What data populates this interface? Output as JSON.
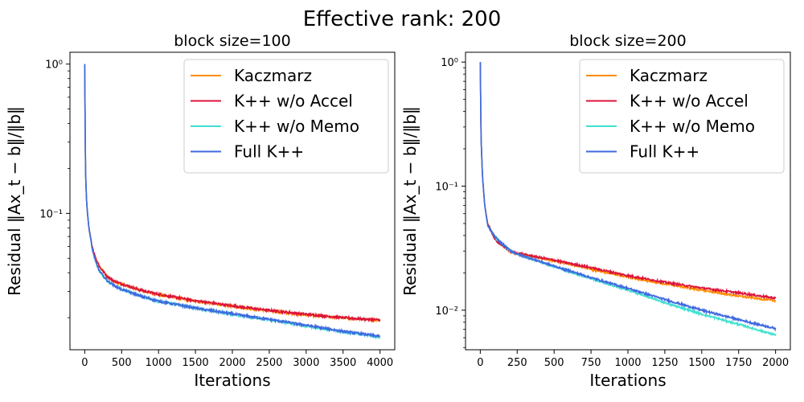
{
  "title": "Effective rank: 200",
  "colors": {
    "Kaczmarz": "#ff8c00",
    "K++ w/o Accel": "#dc143c",
    "K++ w/o Memo": "#40e0d0",
    "Full K++": "#4169e1"
  },
  "chart_data": [
    {
      "type": "line",
      "title": "block size=100",
      "xlabel": "Iterations",
      "ylabel": "Residual ‖Ax_t − b‖/‖b‖",
      "yscale": "log",
      "xlim": [
        -200,
        4200
      ],
      "ylim": [
        0.0122,
        1.2
      ],
      "xticks": [
        0,
        500,
        1000,
        1500,
        2000,
        2500,
        3000,
        3500,
        4000
      ],
      "xtick_labels": [
        "0",
        "500",
        "1000",
        "1500",
        "2000",
        "2500",
        "3000",
        "3500",
        "4000"
      ],
      "yticks": [
        1.0,
        0.1
      ],
      "ytick_labels": [
        "10⁰",
        "10⁻¹"
      ],
      "legend_position": "top-right",
      "grid": false,
      "series": [
        {
          "name": "Kaczmarz",
          "x": [
            0,
            10,
            25,
            50,
            100,
            150,
            200,
            300,
            400,
            500,
            750,
            1000,
            1500,
            2000,
            2500,
            3000,
            3500,
            4000
          ],
          "y": [
            1.0,
            0.2,
            0.12,
            0.085,
            0.06,
            0.05,
            0.044,
            0.038,
            0.035,
            0.0335,
            0.0305,
            0.0285,
            0.0258,
            0.0238,
            0.0222,
            0.0209,
            0.0199,
            0.0192
          ]
        },
        {
          "name": "K++ w/o Accel",
          "x": [
            0,
            10,
            25,
            50,
            100,
            150,
            200,
            300,
            400,
            500,
            750,
            1000,
            1500,
            2000,
            2500,
            3000,
            3500,
            4000
          ],
          "y": [
            1.0,
            0.2,
            0.12,
            0.085,
            0.06,
            0.05,
            0.044,
            0.038,
            0.0352,
            0.0337,
            0.0307,
            0.0287,
            0.026,
            0.024,
            0.0224,
            0.0211,
            0.02,
            0.0193
          ]
        },
        {
          "name": "K++ w/o Memo",
          "x": [
            0,
            10,
            25,
            50,
            100,
            150,
            200,
            300,
            400,
            500,
            750,
            1000,
            1500,
            2000,
            2500,
            3000,
            3500,
            4000
          ],
          "y": [
            1.0,
            0.2,
            0.12,
            0.085,
            0.058,
            0.047,
            0.041,
            0.0355,
            0.0328,
            0.031,
            0.028,
            0.0258,
            0.0232,
            0.0211,
            0.0193,
            0.0176,
            0.0161,
            0.0148
          ]
        },
        {
          "name": "Full K++",
          "x": [
            0,
            10,
            25,
            50,
            100,
            150,
            200,
            300,
            400,
            500,
            750,
            1000,
            1500,
            2000,
            2500,
            3000,
            3500,
            4000
          ],
          "y": [
            1.0,
            0.2,
            0.12,
            0.085,
            0.058,
            0.047,
            0.041,
            0.0355,
            0.0328,
            0.031,
            0.028,
            0.0258,
            0.0232,
            0.0212,
            0.0195,
            0.0178,
            0.0162,
            0.015
          ]
        }
      ]
    },
    {
      "type": "line",
      "title": "block size=200",
      "xlabel": "Iterations",
      "ylabel": "Residual ‖Ax_t − b‖/‖b‖",
      "yscale": "log",
      "xlim": [
        -100,
        2100
      ],
      "ylim": [
        0.0048,
        1.2
      ],
      "xticks": [
        0,
        250,
        500,
        750,
        1000,
        1250,
        1500,
        1750,
        2000
      ],
      "xtick_labels": [
        "0",
        "250",
        "500",
        "750",
        "1000",
        "1250",
        "1500",
        "1750",
        "2000"
      ],
      "yticks": [
        1.0,
        0.1,
        0.01
      ],
      "ytick_labels": [
        "10⁰",
        "10⁻¹",
        "10⁻²"
      ],
      "legend_position": "top-right",
      "grid": false,
      "series": [
        {
          "name": "Kaczmarz",
          "x": [
            0,
            5,
            15,
            30,
            50,
            100,
            150,
            200,
            250,
            500,
            750,
            1000,
            1250,
            1500,
            1750,
            2000
          ],
          "y": [
            1.0,
            0.25,
            0.12,
            0.07,
            0.05,
            0.038,
            0.033,
            0.03,
            0.0285,
            0.025,
            0.0215,
            0.0185,
            0.0163,
            0.0145,
            0.013,
            0.0119
          ]
        },
        {
          "name": "K++ w/o Accel",
          "x": [
            0,
            5,
            15,
            30,
            50,
            100,
            150,
            200,
            250,
            500,
            750,
            1000,
            1250,
            1500,
            1750,
            2000
          ],
          "y": [
            1.0,
            0.25,
            0.12,
            0.07,
            0.05,
            0.037,
            0.033,
            0.03,
            0.0288,
            0.0253,
            0.022,
            0.019,
            0.0168,
            0.0151,
            0.0138,
            0.0125
          ]
        },
        {
          "name": "K++ w/o Memo",
          "x": [
            0,
            5,
            15,
            30,
            50,
            100,
            150,
            200,
            250,
            500,
            750,
            1000,
            1250,
            1500,
            1750,
            2000
          ],
          "y": [
            1.0,
            0.25,
            0.12,
            0.07,
            0.048,
            0.039,
            0.034,
            0.0305,
            0.0283,
            0.0225,
            0.018,
            0.0145,
            0.0115,
            0.0093,
            0.0077,
            0.0063
          ]
        },
        {
          "name": "Full K++",
          "x": [
            0,
            5,
            15,
            30,
            50,
            100,
            150,
            200,
            250,
            500,
            750,
            1000,
            1250,
            1500,
            1750,
            2000
          ],
          "y": [
            1.0,
            0.25,
            0.12,
            0.07,
            0.048,
            0.039,
            0.034,
            0.0305,
            0.0283,
            0.0227,
            0.0183,
            0.015,
            0.0122,
            0.01,
            0.0084,
            0.0071
          ]
        }
      ]
    }
  ]
}
